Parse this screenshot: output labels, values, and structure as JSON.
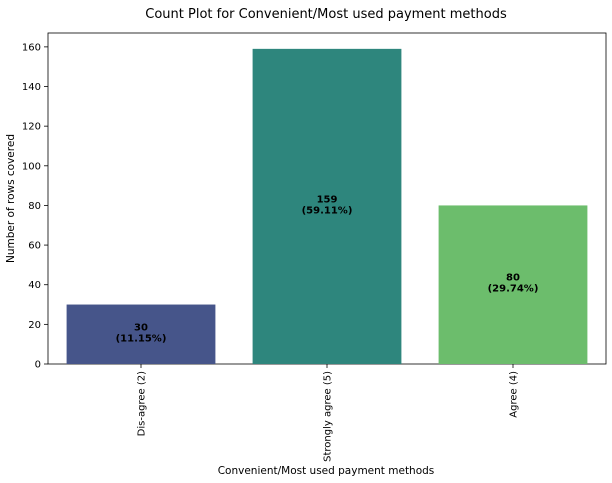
{
  "chart_data": {
    "type": "bar",
    "title": "Count Plot for Convenient/Most used payment methods",
    "xlabel": "Convenient/Most used payment methods",
    "ylabel": "Number of rows covered",
    "categories": [
      "Dis-agree (2)",
      "Strongly agree (5)",
      "Agree (4)"
    ],
    "values": [
      30,
      159,
      80
    ],
    "bar_labels": [
      [
        "30",
        "(11.15%)"
      ],
      [
        "159",
        "(59.11%)"
      ],
      [
        "80",
        "(29.74%)"
      ]
    ],
    "colors": [
      "#46558a",
      "#2e867d",
      "#6cbd6c"
    ],
    "ylim": [
      0,
      167
    ],
    "yticks": [
      0,
      20,
      40,
      60,
      80,
      100,
      120,
      140,
      160
    ],
    "grid": false
  }
}
